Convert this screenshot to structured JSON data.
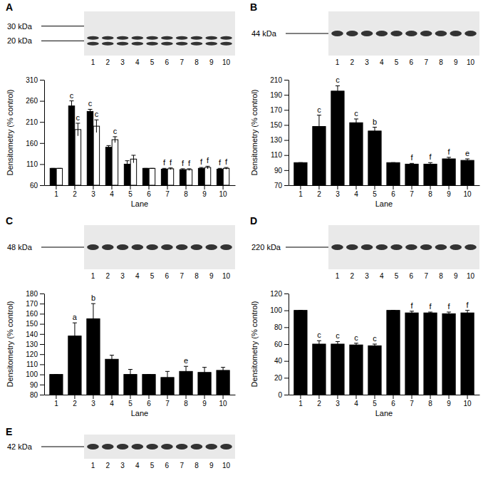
{
  "chart_data": [
    {
      "type": "bar",
      "title": "A",
      "blot_labels": [
        "30 kDa",
        "20 kDa"
      ],
      "lanes": [
        1,
        2,
        3,
        4,
        5,
        6,
        7,
        8,
        9,
        10
      ],
      "categories": [
        "1",
        "2",
        "3",
        "4",
        "5",
        "6",
        "7",
        "8",
        "9",
        "10"
      ],
      "x_label": "Lane",
      "y_label": "Densitometry (% control)",
      "ylim": [
        60,
        310
      ],
      "yticks": [
        60,
        110,
        160,
        210,
        260,
        310
      ],
      "series": [
        {
          "color": "#000000",
          "values": [
            100,
            248,
            235,
            150,
            110,
            100,
            98,
            97,
            100,
            98
          ],
          "errors": [
            0,
            12,
            5,
            4,
            8,
            0,
            2,
            2,
            2,
            2
          ],
          "annotations": [
            null,
            "c",
            "c",
            null,
            null,
            null,
            "f",
            "f",
            "f",
            "f"
          ]
        },
        {
          "color": "#ffffff",
          "values": [
            100,
            192,
            200,
            168,
            122,
            100,
            99,
            97,
            102,
            100
          ],
          "errors": [
            0,
            15,
            15,
            7,
            9,
            0,
            2,
            2,
            3,
            2
          ],
          "annotations": [
            null,
            "c",
            "c",
            "c",
            null,
            null,
            "f",
            "f",
            "f",
            "f"
          ]
        }
      ]
    },
    {
      "type": "bar",
      "title": "B",
      "blot_labels": [
        "44 kDa"
      ],
      "lanes": [
        1,
        2,
        3,
        4,
        5,
        6,
        7,
        8,
        9,
        10
      ],
      "categories": [
        "1",
        "2",
        "3",
        "4",
        "5",
        "6",
        "7",
        "8",
        "9",
        "10"
      ],
      "x_label": "Lane",
      "y_label": "Densitometry (% control)",
      "ylim": [
        70,
        210
      ],
      "yticks": [
        70,
        90,
        110,
        130,
        150,
        170,
        190,
        210
      ],
      "series": [
        {
          "color": "#000000",
          "values": [
            100,
            148,
            195,
            153,
            142,
            100,
            98,
            98,
            105,
            103
          ],
          "errors": [
            0,
            15,
            7,
            5,
            5,
            0,
            1,
            2,
            2,
            2
          ],
          "annotations": [
            null,
            "c",
            "c",
            "c",
            "b",
            null,
            "f",
            "f",
            "f",
            "e"
          ]
        }
      ]
    },
    {
      "type": "bar",
      "title": "C",
      "blot_labels": [
        "48 kDa"
      ],
      "lanes": [
        1,
        2,
        3,
        4,
        5,
        6,
        7,
        8,
        9,
        10
      ],
      "categories": [
        "1",
        "2",
        "3",
        "4",
        "5",
        "6",
        "7",
        "8",
        "9",
        "10"
      ],
      "x_label": "Lane",
      "y_label": "Densitometry (% control)",
      "ylim": [
        80,
        180
      ],
      "yticks": [
        80,
        90,
        100,
        110,
        120,
        130,
        140,
        150,
        160,
        170,
        180
      ],
      "series": [
        {
          "color": "#000000",
          "values": [
            100,
            138,
            155,
            115,
            100,
            100,
            97,
            103,
            102,
            104
          ],
          "errors": [
            0,
            13,
            15,
            4,
            5,
            0,
            6,
            5,
            5,
            3
          ],
          "annotations": [
            null,
            "a",
            "b",
            null,
            null,
            null,
            null,
            "e",
            null,
            null
          ]
        }
      ]
    },
    {
      "type": "bar",
      "title": "D",
      "blot_labels": [
        "220 kDa"
      ],
      "lanes": [
        1,
        2,
        3,
        4,
        5,
        6,
        7,
        8,
        9,
        10
      ],
      "categories": [
        "1",
        "2",
        "3",
        "4",
        "5",
        "6",
        "7",
        "8",
        "9",
        "10"
      ],
      "x_label": "Lane",
      "y_label": "Densitometry (% control)",
      "ylim": [
        0,
        120
      ],
      "yticks": [
        0,
        20,
        40,
        60,
        80,
        100,
        120
      ],
      "series": [
        {
          "color": "#000000",
          "values": [
            100,
            60,
            60,
            59,
            58,
            100,
            97,
            97,
            96,
            97
          ],
          "errors": [
            0,
            4,
            3,
            2,
            2,
            0,
            2,
            1,
            2,
            3
          ],
          "annotations": [
            null,
            "c",
            "c",
            "c",
            "c",
            null,
            "f",
            "f",
            "f",
            "f"
          ]
        }
      ]
    },
    {
      "type": "blot",
      "title": "E",
      "blot_labels": [
        "42 kDa"
      ],
      "lanes": [
        1,
        2,
        3,
        4,
        5,
        6,
        7,
        8,
        9,
        10
      ]
    }
  ]
}
